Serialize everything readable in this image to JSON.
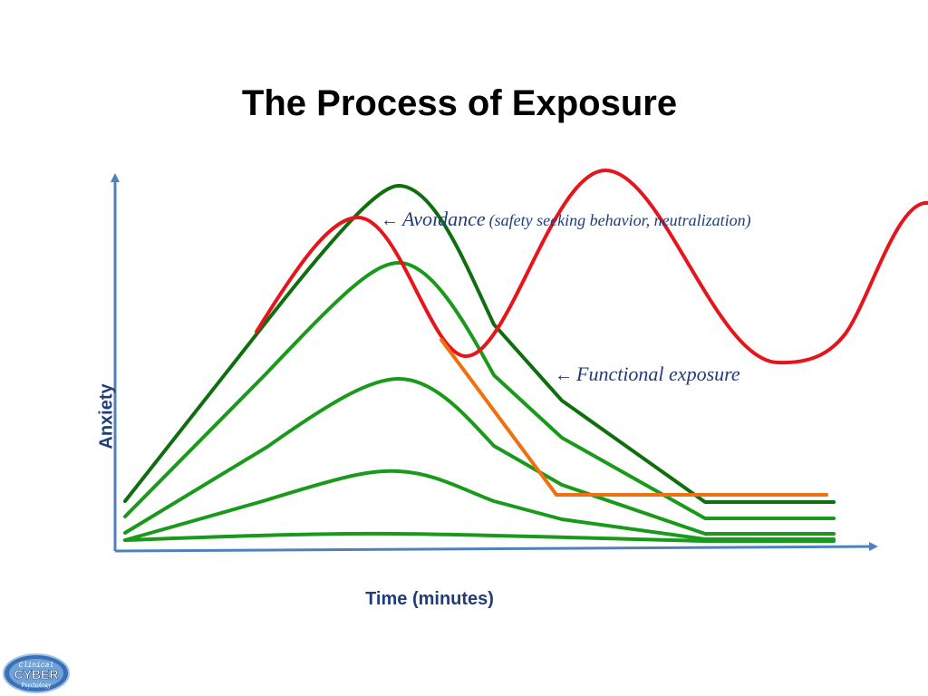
{
  "slide": {
    "title": "The Process of Exposure"
  },
  "axes": {
    "y_label": "Anxiety",
    "x_label": "Time (minutes)"
  },
  "annotations": {
    "avoidance": {
      "arrow": "←",
      "label": "Avoidance",
      "detail": "(safety seeking behavior, neutralization)"
    },
    "functional": {
      "arrow": "←",
      "label": "Functional exposure"
    }
  },
  "colors": {
    "axis": "#4f81bd",
    "dark_green": "#0f6e0f",
    "green": "#1a9a1a",
    "red": "#e8141b",
    "orange": "#f07010",
    "text": "#1f3d7a"
  },
  "logo": {
    "line1": "Clinical",
    "line2": "CYBER",
    "line3": "Psychology"
  }
}
